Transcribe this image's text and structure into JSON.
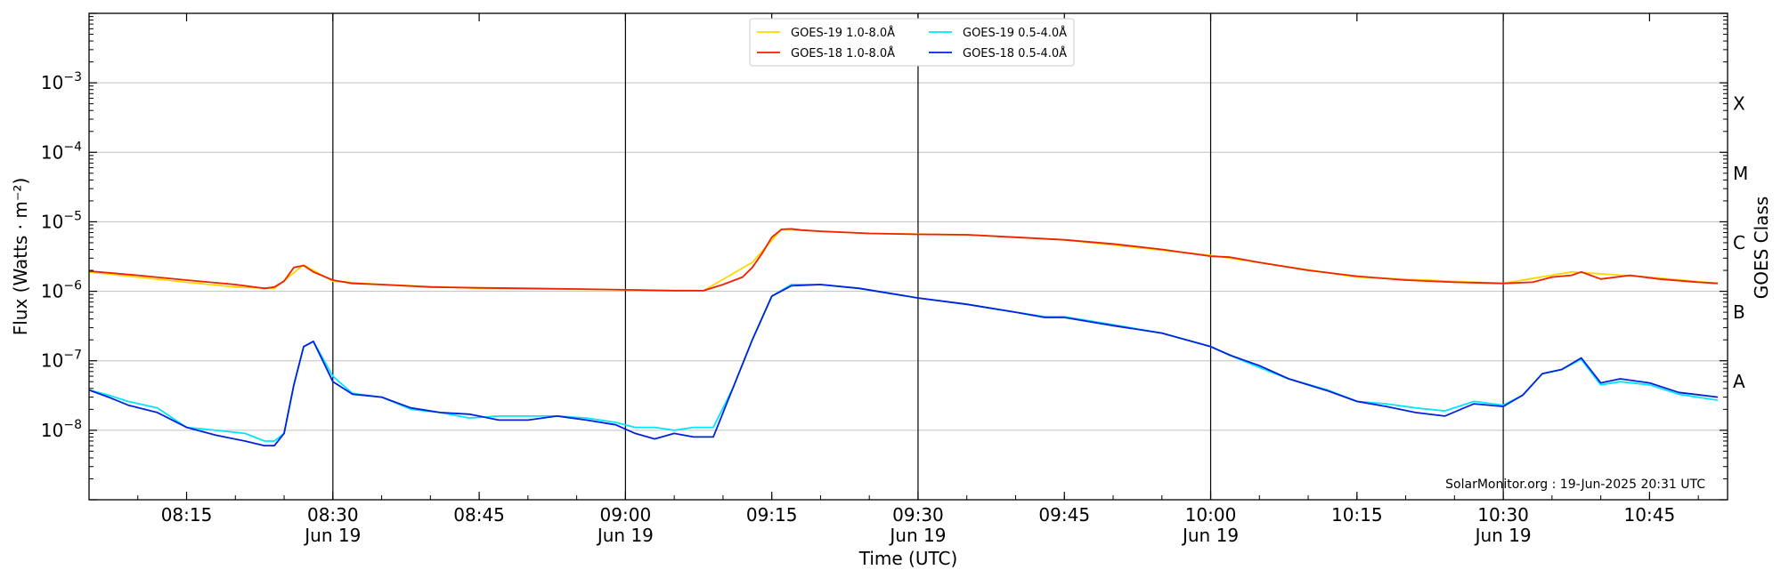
{
  "chart_data": {
    "type": "line",
    "xlabel": "Time (UTC)",
    "ylabel": "Flux (Watts · m⁻²)",
    "right_axis_label": "GOES Class",
    "yscale": "log",
    "ylim": [
      1e-09,
      0.01
    ],
    "xlim": [
      "2025-06-19T08:05:00",
      "2025-06-19T10:53:00"
    ],
    "grid": "horizontal",
    "legend_position": "top-center",
    "credit": "SolarMonitor.org : 19-Jun-2025 20:31 UTC",
    "x_ticks": [
      {
        "time": "2025-06-19T08:15:00",
        "label": "08:15",
        "sublabel": ""
      },
      {
        "time": "2025-06-19T08:30:00",
        "label": "08:30",
        "sublabel": "Jun 19"
      },
      {
        "time": "2025-06-19T08:45:00",
        "label": "08:45",
        "sublabel": ""
      },
      {
        "time": "2025-06-19T09:00:00",
        "label": "09:00",
        "sublabel": "Jun 19"
      },
      {
        "time": "2025-06-19T09:15:00",
        "label": "09:15",
        "sublabel": ""
      },
      {
        "time": "2025-06-19T09:30:00",
        "label": "09:30",
        "sublabel": "Jun 19"
      },
      {
        "time": "2025-06-19T09:45:00",
        "label": "09:45",
        "sublabel": ""
      },
      {
        "time": "2025-06-19T10:00:00",
        "label": "10:00",
        "sublabel": "Jun 19"
      },
      {
        "time": "2025-06-19T10:15:00",
        "label": "10:15",
        "sublabel": ""
      },
      {
        "time": "2025-06-19T10:30:00",
        "label": "10:30",
        "sublabel": "Jun 19"
      },
      {
        "time": "2025-06-19T10:45:00",
        "label": "10:45",
        "sublabel": ""
      }
    ],
    "day_lines": [
      "2025-06-19T08:30:00",
      "2025-06-19T09:00:00",
      "2025-06-19T09:30:00",
      "2025-06-19T10:00:00",
      "2025-06-19T10:30:00"
    ],
    "y_ticks": [
      {
        "value": 1e-08,
        "base": "10",
        "exp": "−8"
      },
      {
        "value": 1e-07,
        "base": "10",
        "exp": "−7"
      },
      {
        "value": 1e-06,
        "base": "10",
        "exp": "−6"
      },
      {
        "value": 1e-05,
        "base": "10",
        "exp": "−5"
      },
      {
        "value": 0.0001,
        "base": "10",
        "exp": "−4"
      },
      {
        "value": 0.001,
        "base": "10",
        "exp": "−3"
      }
    ],
    "class_labels": [
      {
        "label": "A",
        "value": 5e-08
      },
      {
        "label": "B",
        "value": 5e-07
      },
      {
        "label": "C",
        "value": 5e-06
      },
      {
        "label": "M",
        "value": 5e-05
      },
      {
        "label": "X",
        "value": 0.0005
      }
    ],
    "series": [
      {
        "name": "GOES-19 1.0-8.0Å",
        "color": "#ffd700",
        "x": [
          "2025-06-19T08:05:00",
          "2025-06-19T08:10:00",
          "2025-06-19T08:15:00",
          "2025-06-19T08:20:00",
          "2025-06-19T08:24:00",
          "2025-06-19T08:27:00",
          "2025-06-19T08:30:00",
          "2025-06-19T08:35:00",
          "2025-06-19T08:45:00",
          "2025-06-19T09:00:00",
          "2025-06-19T09:08:00",
          "2025-06-19T09:13:00",
          "2025-06-19T09:16:00",
          "2025-06-19T09:25:00",
          "2025-06-19T09:35:00",
          "2025-06-19T09:45:00",
          "2025-06-19T10:00:00",
          "2025-06-19T10:15:00",
          "2025-06-19T10:30:00",
          "2025-06-19T10:37:00",
          "2025-06-19T10:45:00",
          "2025-06-19T10:52:00"
        ],
        "values": [
          1.9e-06,
          1.6e-06,
          1.35e-06,
          1.15e-06,
          1.1e-06,
          2.4e-06,
          1.4e-06,
          1.25e-06,
          1.1e-06,
          1.05e-06,
          1.02e-06,
          2.6e-06,
          7.8e-06,
          6.8e-06,
          6.5e-06,
          5.5e-06,
          3.3e-06,
          1.6e-06,
          1.3e-06,
          1.9e-06,
          1.6e-06,
          1.3e-06
        ]
      },
      {
        "name": "GOES-19 0.5-4.0Å",
        "color": "#00e5ff",
        "x": [
          "2025-06-19T08:05:00",
          "2025-06-19T08:07:00",
          "2025-06-19T08:09:00",
          "2025-06-19T08:12:00",
          "2025-06-19T08:15:00",
          "2025-06-19T08:18:00",
          "2025-06-19T08:21:00",
          "2025-06-19T08:23:00",
          "2025-06-19T08:24:00",
          "2025-06-19T08:25:00",
          "2025-06-19T08:26:00",
          "2025-06-19T08:27:00",
          "2025-06-19T08:28:00",
          "2025-06-19T08:30:00",
          "2025-06-19T08:32:00",
          "2025-06-19T08:35:00",
          "2025-06-19T08:38:00",
          "2025-06-19T08:41:00",
          "2025-06-19T08:44:00",
          "2025-06-19T08:47:00",
          "2025-06-19T08:50:00",
          "2025-06-19T08:53:00",
          "2025-06-19T08:56:00",
          "2025-06-19T08:59:00",
          "2025-06-19T09:01:00",
          "2025-06-19T09:03:00",
          "2025-06-19T09:05:00",
          "2025-06-19T09:07:00",
          "2025-06-19T09:09:00",
          "2025-06-19T09:11:00",
          "2025-06-19T09:13:00",
          "2025-06-19T09:15:00",
          "2025-06-19T09:17:00",
          "2025-06-19T09:20:00",
          "2025-06-19T09:24:00",
          "2025-06-19T09:30:00",
          "2025-06-19T09:35:00",
          "2025-06-19T09:40:00",
          "2025-06-19T09:43:00",
          "2025-06-19T09:45:00",
          "2025-06-19T09:50:00",
          "2025-06-19T09:55:00",
          "2025-06-19T10:00:00",
          "2025-06-19T10:02:00",
          "2025-06-19T10:05:00",
          "2025-06-19T10:08:00",
          "2025-06-19T10:12:00",
          "2025-06-19T10:15:00",
          "2025-06-19T10:18:00",
          "2025-06-19T10:21:00",
          "2025-06-19T10:24:00",
          "2025-06-19T10:27:00",
          "2025-06-19T10:30:00",
          "2025-06-19T10:32:00",
          "2025-06-19T10:34:00",
          "2025-06-19T10:36:00",
          "2025-06-19T10:38:00",
          "2025-06-19T10:40:00",
          "2025-06-19T10:42:00",
          "2025-06-19T10:45:00",
          "2025-06-19T10:48:00",
          "2025-06-19T10:52:00"
        ],
        "values": [
          3.8e-08,
          3.2e-08,
          2.6e-08,
          2.1e-08,
          1.1e-08,
          1e-08,
          9e-09,
          7e-09,
          7e-09,
          9e-09,
          4.5e-08,
          1.6e-07,
          1.9e-07,
          6e-08,
          3.4e-08,
          3e-08,
          2e-08,
          1.8e-08,
          1.5e-08,
          1.6e-08,
          1.6e-08,
          1.6e-08,
          1.5e-08,
          1.3e-08,
          1.1e-08,
          1.1e-08,
          1e-08,
          1.1e-08,
          1.1e-08,
          4e-08,
          2e-07,
          8.5e-07,
          1.25e-06,
          1.25e-06,
          1.1e-06,
          8e-07,
          6.5e-07,
          5e-07,
          4.3e-07,
          4.3e-07,
          3.3e-07,
          2.5e-07,
          1.6e-07,
          1.2e-07,
          8e-08,
          5.5e-08,
          3.8e-08,
          2.6e-08,
          2.4e-08,
          2.1e-08,
          1.9e-08,
          2.6e-08,
          2.3e-08,
          3.2e-08,
          6.5e-08,
          7.5e-08,
          1.05e-07,
          4.5e-08,
          5e-08,
          4.5e-08,
          3.3e-08,
          2.7e-08
        ]
      },
      {
        "name": "GOES-18 1.0-8.0Å",
        "color": "#ee2200",
        "x": [
          "2025-06-19T08:05:00",
          "2025-06-19T08:10:00",
          "2025-06-19T08:15:00",
          "2025-06-19T08:20:00",
          "2025-06-19T08:23:00",
          "2025-06-19T08:24:00",
          "2025-06-19T08:25:00",
          "2025-06-19T08:26:00",
          "2025-06-19T08:27:00",
          "2025-06-19T08:28:00",
          "2025-06-19T08:30:00",
          "2025-06-19T08:32:00",
          "2025-06-19T08:35:00",
          "2025-06-19T08:40:00",
          "2025-06-19T08:45:00",
          "2025-06-19T08:50:00",
          "2025-06-19T08:55:00",
          "2025-06-19T09:00:00",
          "2025-06-19T09:05:00",
          "2025-06-19T09:08:00",
          "2025-06-19T09:10:00",
          "2025-06-19T09:12:00",
          "2025-06-19T09:13:00",
          "2025-06-19T09:14:00",
          "2025-06-19T09:15:00",
          "2025-06-19T09:16:00",
          "2025-06-19T09:17:00",
          "2025-06-19T09:18:00",
          "2025-06-19T09:20:00",
          "2025-06-19T09:25:00",
          "2025-06-19T09:30:00",
          "2025-06-19T09:35:00",
          "2025-06-19T09:40:00",
          "2025-06-19T09:45:00",
          "2025-06-19T09:50:00",
          "2025-06-19T09:55:00",
          "2025-06-19T10:00:00",
          "2025-06-19T10:02:00",
          "2025-06-19T10:05:00",
          "2025-06-19T10:10:00",
          "2025-06-19T10:15:00",
          "2025-06-19T10:20:00",
          "2025-06-19T10:25:00",
          "2025-06-19T10:30:00",
          "2025-06-19T10:33:00",
          "2025-06-19T10:35:00",
          "2025-06-19T10:37:00",
          "2025-06-19T10:38:00",
          "2025-06-19T10:40:00",
          "2025-06-19T10:43:00",
          "2025-06-19T10:46:00",
          "2025-06-19T10:50:00",
          "2025-06-19T10:52:00"
        ],
        "values": [
          1.95e-06,
          1.7e-06,
          1.45e-06,
          1.25e-06,
          1.1e-06,
          1.15e-06,
          1.4e-06,
          2.2e-06,
          2.35e-06,
          1.9e-06,
          1.45e-06,
          1.3e-06,
          1.25e-06,
          1.15e-06,
          1.12e-06,
          1.1e-06,
          1.08e-06,
          1.05e-06,
          1.02e-06,
          1.02e-06,
          1.25e-06,
          1.6e-06,
          2.2e-06,
          3.5e-06,
          6e-06,
          7.8e-06,
          7.9e-06,
          7.6e-06,
          7.3e-06,
          6.8e-06,
          6.6e-06,
          6.5e-06,
          6e-06,
          5.5e-06,
          4.8e-06,
          4e-06,
          3.2e-06,
          3.1e-06,
          2.6e-06,
          2e-06,
          1.65e-06,
          1.45e-06,
          1.35e-06,
          1.3e-06,
          1.35e-06,
          1.6e-06,
          1.7e-06,
          1.9e-06,
          1.5e-06,
          1.7e-06,
          1.5e-06,
          1.35e-06,
          1.3e-06
        ]
      },
      {
        "name": "GOES-18 0.5-4.0Å",
        "color": "#0022dd",
        "x": [
          "2025-06-19T08:05:00",
          "2025-06-19T08:07:00",
          "2025-06-19T08:09:00",
          "2025-06-19T08:12:00",
          "2025-06-19T08:15:00",
          "2025-06-19T08:18:00",
          "2025-06-19T08:21:00",
          "2025-06-19T08:23:00",
          "2025-06-19T08:24:00",
          "2025-06-19T08:25:00",
          "2025-06-19T08:26:00",
          "2025-06-19T08:27:00",
          "2025-06-19T08:28:00",
          "2025-06-19T08:30:00",
          "2025-06-19T08:32:00",
          "2025-06-19T08:35:00",
          "2025-06-19T08:38:00",
          "2025-06-19T08:41:00",
          "2025-06-19T08:44:00",
          "2025-06-19T08:47:00",
          "2025-06-19T08:50:00",
          "2025-06-19T08:53:00",
          "2025-06-19T08:56:00",
          "2025-06-19T08:59:00",
          "2025-06-19T09:01:00",
          "2025-06-19T09:03:00",
          "2025-06-19T09:05:00",
          "2025-06-19T09:07:00",
          "2025-06-19T09:09:00",
          "2025-06-19T09:11:00",
          "2025-06-19T09:13:00",
          "2025-06-19T09:15:00",
          "2025-06-19T09:17:00",
          "2025-06-19T09:20:00",
          "2025-06-19T09:24:00",
          "2025-06-19T09:30:00",
          "2025-06-19T09:35:00",
          "2025-06-19T09:40:00",
          "2025-06-19T09:43:00",
          "2025-06-19T09:45:00",
          "2025-06-19T09:50:00",
          "2025-06-19T09:55:00",
          "2025-06-19T10:00:00",
          "2025-06-19T10:02:00",
          "2025-06-19T10:05:00",
          "2025-06-19T10:08:00",
          "2025-06-19T10:12:00",
          "2025-06-19T10:15:00",
          "2025-06-19T10:18:00",
          "2025-06-19T10:21:00",
          "2025-06-19T10:24:00",
          "2025-06-19T10:27:00",
          "2025-06-19T10:30:00",
          "2025-06-19T10:32:00",
          "2025-06-19T10:34:00",
          "2025-06-19T10:36:00",
          "2025-06-19T10:38:00",
          "2025-06-19T10:40:00",
          "2025-06-19T10:42:00",
          "2025-06-19T10:45:00",
          "2025-06-19T10:48:00",
          "2025-06-19T10:52:00"
        ],
        "values": [
          3.8e-08,
          3e-08,
          2.3e-08,
          1.8e-08,
          1.1e-08,
          8.5e-09,
          7e-09,
          6e-09,
          6e-09,
          9e-09,
          4.5e-08,
          1.6e-07,
          1.9e-07,
          5e-08,
          3.3e-08,
          3e-08,
          2.1e-08,
          1.8e-08,
          1.7e-08,
          1.4e-08,
          1.4e-08,
          1.6e-08,
          1.4e-08,
          1.2e-08,
          9e-09,
          7.5e-09,
          9e-09,
          8e-09,
          8e-09,
          4e-08,
          2e-07,
          8.5e-07,
          1.2e-06,
          1.25e-06,
          1.1e-06,
          8e-07,
          6.5e-07,
          5e-07,
          4.2e-07,
          4.2e-07,
          3.2e-07,
          2.5e-07,
          1.6e-07,
          1.2e-07,
          8.5e-08,
          5.5e-08,
          3.7e-08,
          2.6e-08,
          2.2e-08,
          1.8e-08,
          1.6e-08,
          2.4e-08,
          2.2e-08,
          3.2e-08,
          6.5e-08,
          7.5e-08,
          1.1e-07,
          4.8e-08,
          5.5e-08,
          4.8e-08,
          3.5e-08,
          3e-08
        ]
      }
    ]
  }
}
